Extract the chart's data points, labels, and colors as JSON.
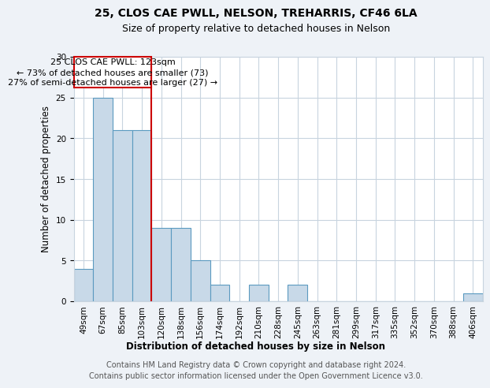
{
  "title1": "25, CLOS CAE PWLL, NELSON, TREHARRIS, CF46 6LA",
  "title2": "Size of property relative to detached houses in Nelson",
  "xlabel": "Distribution of detached houses by size in Nelson",
  "ylabel": "Number of detached properties",
  "categories": [
    "49sqm",
    "67sqm",
    "85sqm",
    "103sqm",
    "120sqm",
    "138sqm",
    "156sqm",
    "174sqm",
    "192sqm",
    "210sqm",
    "228sqm",
    "245sqm",
    "263sqm",
    "281sqm",
    "299sqm",
    "317sqm",
    "335sqm",
    "352sqm",
    "370sqm",
    "388sqm",
    "406sqm"
  ],
  "values": [
    4,
    25,
    21,
    21,
    9,
    9,
    5,
    2,
    0,
    2,
    0,
    2,
    0,
    0,
    0,
    0,
    0,
    0,
    0,
    0,
    1
  ],
  "bar_color": "#c8d9e8",
  "bar_edge_color": "#5b9ac0",
  "highlight_line_index": 4,
  "highlight_color": "#cc0000",
  "annotation_line1": "25 CLOS CAE PWLL: 123sqm",
  "annotation_line2": "← 73% of detached houses are smaller (73)",
  "annotation_line3": "27% of semi-detached houses are larger (27) →",
  "ylim": [
    0,
    30
  ],
  "yticks": [
    0,
    5,
    10,
    15,
    20,
    25,
    30
  ],
  "footer1": "Contains HM Land Registry data © Crown copyright and database right 2024.",
  "footer2": "Contains public sector information licensed under the Open Government Licence v3.0.",
  "background_color": "#eef2f7",
  "plot_bg_color": "#ffffff",
  "grid_color": "#c8d4df",
  "title_fontsize": 10,
  "subtitle_fontsize": 9,
  "axis_label_fontsize": 8.5,
  "tick_fontsize": 7.5,
  "annotation_fontsize": 8,
  "footer_fontsize": 7
}
